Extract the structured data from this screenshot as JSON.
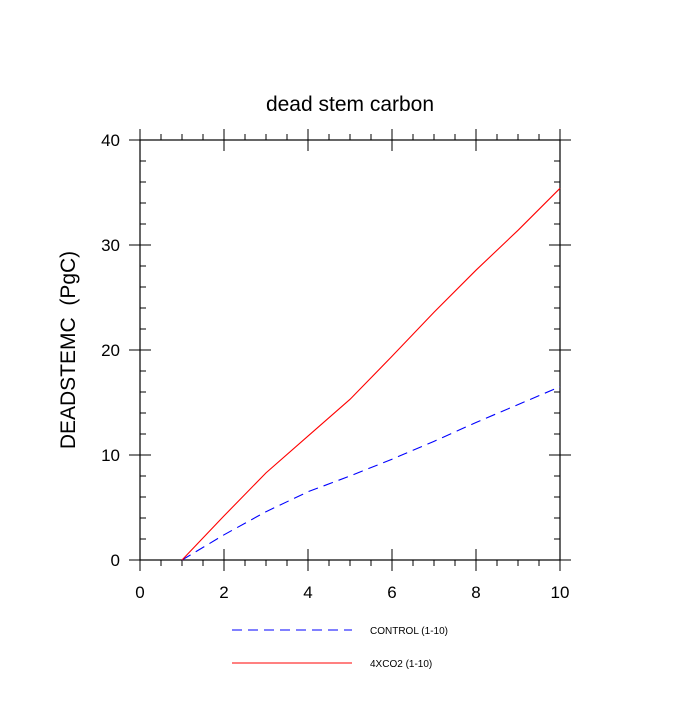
{
  "chart_data": {
    "type": "line",
    "title": "dead stem carbon",
    "xlabel": "",
    "ylabel": "DEADSTEMC  (PgC)",
    "xlim": [
      0,
      10
    ],
    "ylim": [
      0,
      40
    ],
    "xticks": [
      0,
      2,
      4,
      6,
      8,
      10
    ],
    "yticks": [
      0,
      10,
      20,
      30,
      40
    ],
    "grid": false,
    "legend_position": "bottom",
    "x": [
      1,
      2,
      3,
      4,
      5,
      6,
      7,
      8,
      9,
      10
    ],
    "series": [
      {
        "name": "CONTROL (1-10)",
        "color": "#0000ff",
        "dash": "dashed",
        "values": [
          0,
          2.4,
          4.6,
          6.5,
          8.0,
          9.6,
          11.3,
          13.1,
          14.8,
          16.5
        ]
      },
      {
        "name": "4XCO2 (1-10)",
        "color": "#ff0000",
        "dash": "solid",
        "values": [
          0,
          4.2,
          8.3,
          11.8,
          15.3,
          19.4,
          23.6,
          27.6,
          31.4,
          35.4
        ]
      }
    ]
  }
}
